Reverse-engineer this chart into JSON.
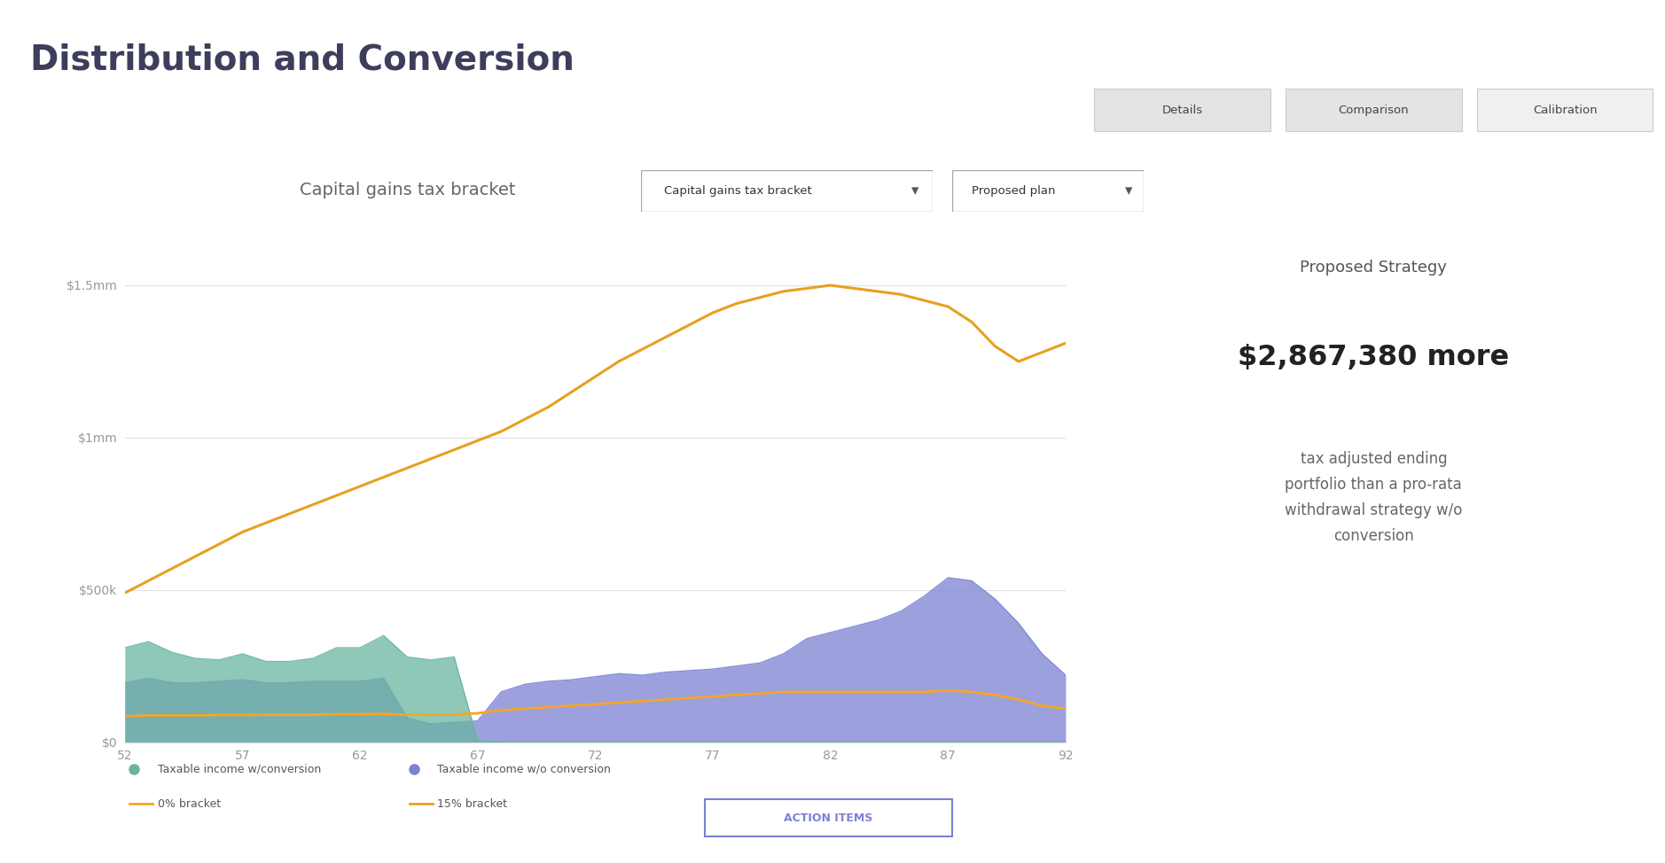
{
  "title": "Distribution and Conversion",
  "chart_title": "Capital gains tax bracket",
  "background_color": "#ffffff",
  "chart_bg": "#ffffff",
  "x": [
    52,
    53,
    54,
    55,
    56,
    57,
    58,
    59,
    60,
    61,
    62,
    63,
    64,
    65,
    66,
    67,
    68,
    69,
    70,
    71,
    72,
    73,
    74,
    75,
    76,
    77,
    78,
    79,
    80,
    81,
    82,
    83,
    84,
    85,
    86,
    87,
    88,
    89,
    90,
    91,
    92
  ],
  "green_y": [
    310000,
    330000,
    295000,
    275000,
    270000,
    290000,
    265000,
    265000,
    275000,
    310000,
    310000,
    350000,
    280000,
    270000,
    280000,
    5000,
    0,
    0,
    0,
    0,
    0,
    0,
    0,
    0,
    0,
    0,
    0,
    0,
    0,
    0,
    0,
    0,
    0,
    0,
    0,
    0,
    0,
    0,
    0,
    0,
    0
  ],
  "blue_y": [
    195000,
    210000,
    195000,
    195000,
    200000,
    205000,
    195000,
    195000,
    200000,
    200000,
    200000,
    210000,
    80000,
    60000,
    65000,
    70000,
    165000,
    190000,
    200000,
    205000,
    215000,
    225000,
    220000,
    230000,
    235000,
    240000,
    250000,
    260000,
    290000,
    340000,
    360000,
    380000,
    400000,
    430000,
    480000,
    540000,
    530000,
    470000,
    390000,
    290000,
    220000
  ],
  "orange_0pct_y": [
    85000,
    88000,
    88000,
    88000,
    89000,
    89000,
    90000,
    90000,
    90000,
    92000,
    92000,
    93000,
    90000,
    90000,
    91000,
    95000,
    105000,
    110000,
    115000,
    120000,
    125000,
    130000,
    135000,
    140000,
    145000,
    150000,
    155000,
    160000,
    165000,
    165000,
    165000,
    165000,
    165000,
    165000,
    165000,
    170000,
    165000,
    155000,
    140000,
    120000,
    110000
  ],
  "gold_15pct_y": [
    490000,
    530000,
    570000,
    610000,
    650000,
    690000,
    720000,
    750000,
    780000,
    810000,
    840000,
    870000,
    900000,
    930000,
    960000,
    990000,
    1020000,
    1060000,
    1100000,
    1150000,
    1200000,
    1250000,
    1290000,
    1330000,
    1370000,
    1410000,
    1440000,
    1460000,
    1480000,
    1490000,
    1500000,
    1490000,
    1480000,
    1470000,
    1450000,
    1430000,
    1380000,
    1300000,
    1250000,
    1280000,
    1310000
  ],
  "green_color": "#6ab5a0",
  "green_alpha": 0.75,
  "blue_color": "#7b82d4",
  "blue_alpha": 0.75,
  "orange_color": "#f5a623",
  "gold_color": "#e8a020",
  "yticks": [
    0,
    500000,
    1000000,
    1500000
  ],
  "ytick_labels": [
    "$0",
    "$500k",
    "$1mm",
    "$1.5mm"
  ],
  "xticks": [
    52,
    57,
    62,
    67,
    72,
    77,
    82,
    87,
    92
  ],
  "ymax": 1700000,
  "ymin": 0,
  "legend_items": [
    {
      "label": "Taxable income w/conversion",
      "type": "fill",
      "color": "#6ab5a0"
    },
    {
      "label": "Taxable income w/o conversion",
      "type": "fill",
      "color": "#7b82d4"
    },
    {
      "label": "0% bracket",
      "type": "line",
      "color": "#f5a623"
    },
    {
      "label": "15% bracket",
      "type": "line",
      "color": "#e8a020"
    }
  ],
  "tabs": [
    "Calibration",
    "Comparison",
    "Details"
  ],
  "dropdown1": "Capital gains tax bracket",
  "dropdown2": "Proposed plan",
  "proposed_strategy_title": "Proposed Strategy",
  "proposed_strategy_value": "$2,867,380 more",
  "proposed_strategy_desc": "tax adjusted ending\nportfolio than a pro-rata\nwithdrawal strategy w/o\nconversion",
  "action_button": "ACTION ITEMS",
  "title_color": "#3d3d5c",
  "title_fontsize": 28,
  "chart_title_color": "#666666",
  "chart_title_fontsize": 14,
  "axis_tick_color": "#999999",
  "gridline_color": "#e0e0e0",
  "proposed_title_color": "#555555",
  "proposed_value_color": "#222222",
  "proposed_desc_color": "#666666"
}
